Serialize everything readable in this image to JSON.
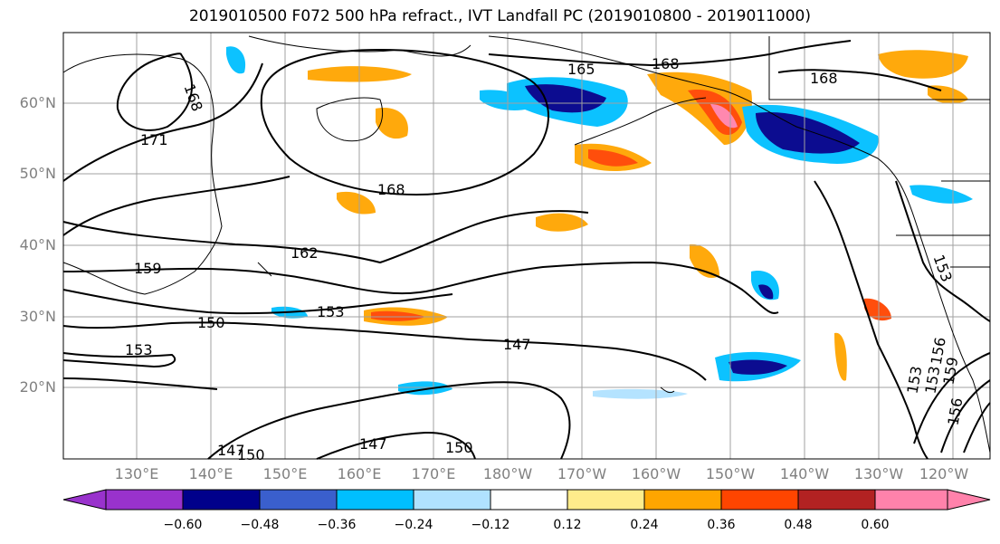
{
  "title": "2019010500 F072 500 hPa refract., IVT Landfall PC (2019010800 - 2019011000)",
  "lat_labels": [
    "60°N",
    "50°N",
    "40°N",
    "30°N",
    "20°N"
  ],
  "lon_labels": [
    "130°E",
    "140°E",
    "150°E",
    "160°E",
    "170°E",
    "180°W",
    "170°W",
    "160°W",
    "150°W",
    "140°W",
    "130°W",
    "120°W"
  ],
  "contour_labels": [
    "168",
    "171",
    "165",
    "168",
    "168",
    "168",
    "162",
    "159",
    "150",
    "153",
    "153",
    "147",
    "147",
    "150",
    "147",
    "150",
    "153",
    "153",
    "156",
    "159",
    "156",
    "153"
  ],
  "colorbar": {
    "ticks": [
      "−0.60",
      "−0.48",
      "−0.36",
      "−0.24",
      "−0.12",
      "0.12",
      "0.24",
      "0.36",
      "0.48",
      "0.60"
    ],
    "colors": [
      "#9932cc",
      "#00008b",
      "#3a5fcd",
      "#00bfff",
      "#b0e2ff",
      "#ffffff",
      "#ffec8b",
      "#ffa500",
      "#ff4500",
      "#b22222",
      "#ff82ab"
    ]
  },
  "chart_data": {
    "type": "heatmap",
    "title": "2019010500 F072 500 hPa refract., IVT Landfall PC (2019010800 - 2019011000)",
    "xlabel": "",
    "ylabel": "",
    "lat_range": [
      10,
      70
    ],
    "lon_range": [
      120,
      245
    ],
    "gridlines": true,
    "colorbar_levels": [
      -0.6,
      -0.48,
      -0.36,
      -0.24,
      -0.12,
      0.12,
      0.24,
      0.36,
      0.48,
      0.6
    ],
    "contour_levels_shown": [
      147,
      150,
      153,
      156,
      159,
      162,
      165,
      168,
      171
    ]
  }
}
